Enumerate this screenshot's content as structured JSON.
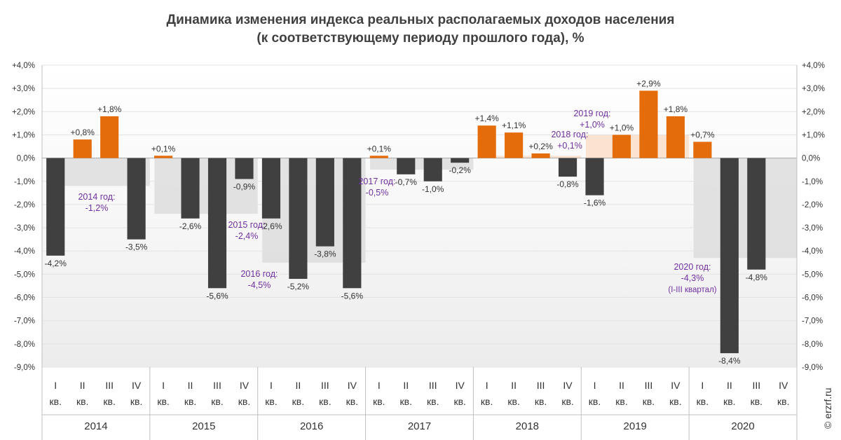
{
  "chart_data": {
    "type": "bar",
    "title": "Динамика изменения индекса реальных располагаемых доходов населения",
    "subtitle": "(к соответствующему  периоду прошлого года), %",
    "ylim": [
      -9,
      4
    ],
    "yticks": [
      "+4,0%",
      "+3,0%",
      "+2,0%",
      "+1,0%",
      "0,0%",
      "-1,0%",
      "-2,0%",
      "-3,0%",
      "-4,0%",
      "-5,0%",
      "-6,0%",
      "-7,0%",
      "-8,0%",
      "-9,0%"
    ],
    "quarter_numerals": [
      "I",
      "II",
      "III",
      "IV"
    ],
    "quarter_suffix": "кв.",
    "colors": {
      "positive": "#E46C0A",
      "negative": "#404040",
      "band": "#D9D9D9",
      "band_2019": "#FBE0CC",
      "annual_label": "#7030A0"
    },
    "years": [
      {
        "year": "2014",
        "values": [
          -4.2,
          0.8,
          1.8,
          -3.5
        ],
        "labels": [
          "-4,2%",
          "+0,8%",
          "+1,8%",
          "-3,5%"
        ],
        "annual": -1.2,
        "annual_label": [
          "2014 год:",
          "-1,2%"
        ]
      },
      {
        "year": "2015",
        "values": [
          0.1,
          -2.6,
          -5.6,
          -0.9
        ],
        "labels": [
          "+0,1%",
          "-2,6%",
          "-5,6%",
          "-0,9%"
        ],
        "annual": -2.4,
        "annual_label": [
          "2015 год:",
          "-2,4%"
        ]
      },
      {
        "year": "2016",
        "values": [
          -2.6,
          -5.2,
          -3.8,
          -5.6
        ],
        "labels": [
          "-2,6%",
          "-5,2%",
          "-3,8%",
          "-5,6%"
        ],
        "annual": -4.5,
        "annual_label": [
          "2016 год:",
          "-4,5%"
        ]
      },
      {
        "year": "2017",
        "values": [
          0.1,
          -0.7,
          -1.0,
          -0.2
        ],
        "labels": [
          "+0,1%",
          "-0,7%",
          "-1,0%",
          "-0,2%"
        ],
        "annual": -0.5,
        "annual_label": [
          "2017 год:",
          "-0,5%"
        ]
      },
      {
        "year": "2018",
        "values": [
          1.4,
          1.1,
          0.2,
          -0.8
        ],
        "labels": [
          "+1,4%",
          "+1,1%",
          "+0,2%",
          "-0,8%"
        ],
        "annual": 0.1,
        "annual_label": [
          "2018 год:",
          "+0,1%"
        ]
      },
      {
        "year": "2019",
        "values": [
          -1.6,
          1.0,
          2.9,
          1.8
        ],
        "labels": [
          "-1,6%",
          "+1,0%",
          "+2,9%",
          "+1,8%"
        ],
        "annual": 1.0,
        "annual_label": [
          "2019 год:",
          "+1,0%"
        ]
      },
      {
        "year": "2020",
        "values": [
          0.7,
          -8.4,
          -4.8,
          null
        ],
        "labels": [
          "+0,7%",
          "-8,4%",
          "-4,8%",
          ""
        ],
        "annual": -4.3,
        "annual_label": [
          "2020 год:",
          "-4,3%",
          "(I-III квартал)"
        ]
      }
    ]
  },
  "credit": "© erzrf.ru"
}
